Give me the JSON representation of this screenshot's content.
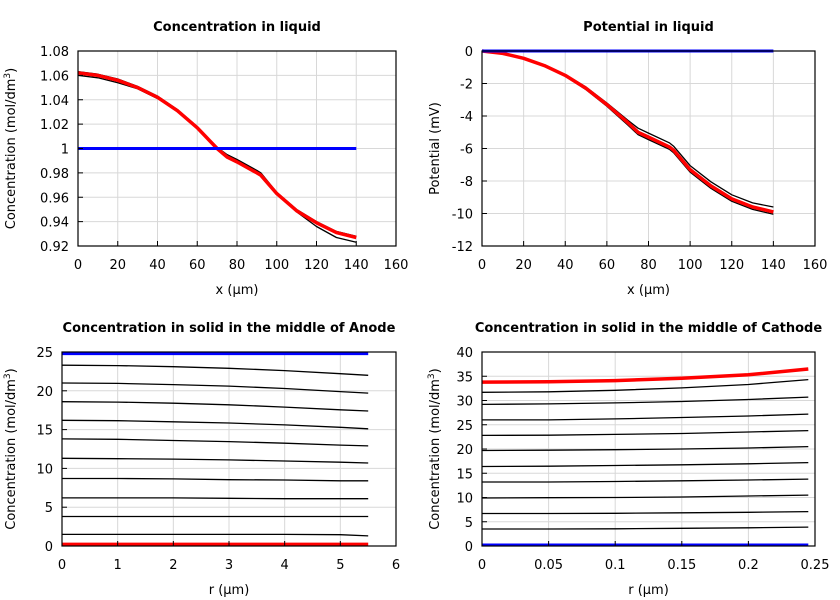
{
  "chart_data": [
    {
      "type": "line",
      "title": "Concentration in liquid",
      "xlabel": "x (µm)",
      "ylabel": "Concentration (mol/dm3)",
      "xlim": [
        0,
        160
      ],
      "ylim": [
        0.92,
        1.08
      ],
      "xticks": [
        0,
        20,
        40,
        60,
        80,
        100,
        120,
        140,
        160
      ],
      "yticks": [
        0.92,
        0.94,
        0.96,
        0.98,
        1,
        1.02,
        1.04,
        1.06,
        1.08
      ],
      "grid": true,
      "x": [
        0,
        10,
        20,
        30,
        40,
        50,
        60,
        70,
        75,
        80,
        90,
        92,
        100,
        110,
        120,
        130,
        140
      ],
      "series": [
        {
          "color": "#000000",
          "values": [
            1.06,
            1.058,
            1.054,
            1.049,
            1.041,
            1.031,
            1.017,
            1.001,
            0.994,
            0.99,
            0.981,
            0.979,
            0.963,
            0.948,
            0.936,
            0.927,
            0.923
          ]
        },
        {
          "color": "#000000",
          "values": [
            1.063,
            1.061,
            1.057,
            1.051,
            1.043,
            1.032,
            1.018,
            1.001,
            0.995,
            0.991,
            0.982,
            0.98,
            0.964,
            0.95,
            0.94,
            0.932,
            0.928
          ]
        },
        {
          "color": "#ff0000",
          "values": [
            1.062,
            1.06,
            1.056,
            1.05,
            1.042,
            1.031,
            1.017,
            1.0,
            0.993,
            0.989,
            0.98,
            0.978,
            0.963,
            0.949,
            0.939,
            0.931,
            0.927
          ]
        },
        {
          "color": "#0000ff",
          "values": [
            1,
            1,
            1,
            1,
            1,
            1,
            1,
            1,
            1,
            1,
            1,
            1,
            1,
            1,
            1,
            1,
            1
          ]
        }
      ]
    },
    {
      "type": "line",
      "title": "Potential in liquid",
      "xlabel": "x (µm)",
      "ylabel": "Potential (mV)",
      "xlim": [
        0,
        160
      ],
      "ylim": [
        -12,
        0
      ],
      "xticks": [
        0,
        20,
        40,
        60,
        80,
        100,
        120,
        140,
        160
      ],
      "yticks": [
        -12,
        -10,
        -8,
        -6,
        -4,
        -2,
        0
      ],
      "grid": true,
      "x": [
        0,
        10,
        20,
        30,
        40,
        50,
        60,
        70,
        75,
        80,
        90,
        92,
        100,
        110,
        120,
        130,
        140
      ],
      "series": [
        {
          "color": "#000000",
          "values": [
            0,
            -0.15,
            -0.43,
            -0.87,
            -1.45,
            -2.22,
            -3.2,
            -4.25,
            -4.75,
            -5.05,
            -5.65,
            -5.85,
            -7.05,
            -8.05,
            -8.85,
            -9.35,
            -9.6
          ]
        },
        {
          "color": "#000000",
          "values": [
            0,
            -0.16,
            -0.47,
            -0.93,
            -1.55,
            -2.38,
            -3.4,
            -4.55,
            -5.15,
            -5.45,
            -6.05,
            -6.25,
            -7.45,
            -8.45,
            -9.25,
            -9.75,
            -10.05
          ]
        },
        {
          "color": "#ff0000",
          "values": [
            0,
            -0.15,
            -0.45,
            -0.9,
            -1.5,
            -2.3,
            -3.3,
            -4.4,
            -5.0,
            -5.3,
            -5.9,
            -6.1,
            -7.3,
            -8.3,
            -9.1,
            -9.6,
            -9.9
          ]
        },
        {
          "color": "#0000ff",
          "values": [
            0,
            0,
            0,
            0,
            0,
            0,
            0,
            0,
            0,
            0,
            0,
            0,
            0,
            0,
            0,
            0,
            0
          ]
        }
      ]
    },
    {
      "type": "line",
      "title": "Concentration in solid in the middle of Anode",
      "xlabel": "r (µm)",
      "ylabel": "Concentration (mol/dm3)",
      "xlim": [
        0,
        6
      ],
      "ylim": [
        0,
        25
      ],
      "xticks": [
        0,
        1,
        2,
        3,
        4,
        5,
        6
      ],
      "yticks": [
        0,
        5,
        10,
        15,
        20,
        25
      ],
      "grid": true,
      "x": [
        0,
        1,
        2,
        3,
        4,
        5,
        5.5
      ],
      "series": [
        {
          "color": "#0000ff",
          "values": [
            24.8,
            24.8,
            24.8,
            24.8,
            24.8,
            24.8,
            24.8
          ]
        },
        {
          "color": "#000000",
          "values": [
            23.3,
            23.25,
            23.1,
            22.9,
            22.6,
            22.2,
            22.0
          ]
        },
        {
          "color": "#000000",
          "values": [
            21.0,
            20.95,
            20.8,
            20.6,
            20.3,
            19.9,
            19.7
          ]
        },
        {
          "color": "#000000",
          "values": [
            18.6,
            18.55,
            18.4,
            18.2,
            17.9,
            17.55,
            17.4
          ]
        },
        {
          "color": "#000000",
          "values": [
            16.2,
            16.15,
            16.0,
            15.85,
            15.6,
            15.3,
            15.1
          ]
        },
        {
          "color": "#000000",
          "values": [
            13.8,
            13.75,
            13.6,
            13.45,
            13.25,
            13.0,
            12.9
          ]
        },
        {
          "color": "#000000",
          "values": [
            11.3,
            11.25,
            11.2,
            11.1,
            10.95,
            10.8,
            10.7
          ]
        },
        {
          "color": "#000000",
          "values": [
            8.7,
            8.7,
            8.65,
            8.55,
            8.5,
            8.4,
            8.4
          ]
        },
        {
          "color": "#000000",
          "values": [
            6.2,
            6.2,
            6.2,
            6.15,
            6.1,
            6.1,
            6.1
          ]
        },
        {
          "color": "#000000",
          "values": [
            3.8,
            3.8,
            3.8,
            3.8,
            3.8,
            3.8,
            3.8
          ]
        },
        {
          "color": "#000000",
          "values": [
            1.5,
            1.5,
            1.5,
            1.5,
            1.5,
            1.45,
            1.3
          ]
        },
        {
          "color": "#ff0000",
          "values": [
            0.2,
            0.2,
            0.2,
            0.2,
            0.2,
            0.2,
            0.2
          ]
        }
      ]
    },
    {
      "type": "line",
      "title": "Concentration in solid in the middle of Cathode",
      "xlabel": "r (µm)",
      "ylabel": "Concentration (mol/dm3)",
      "xlim": [
        0,
        0.25
      ],
      "ylim": [
        0,
        40
      ],
      "xticks": [
        0,
        0.05,
        0.1,
        0.15,
        0.2,
        0.25
      ],
      "yticks": [
        0,
        5,
        10,
        15,
        20,
        25,
        30,
        35,
        40
      ],
      "grid": true,
      "x": [
        0,
        0.05,
        0.1,
        0.15,
        0.2,
        0.245
      ],
      "series": [
        {
          "color": "#ff0000",
          "values": [
            33.8,
            33.85,
            34.1,
            34.6,
            35.3,
            36.5
          ]
        },
        {
          "color": "#000000",
          "values": [
            31.7,
            31.8,
            32.1,
            32.6,
            33.3,
            34.3
          ]
        },
        {
          "color": "#000000",
          "values": [
            29.2,
            29.3,
            29.5,
            29.8,
            30.2,
            30.7
          ]
        },
        {
          "color": "#000000",
          "values": [
            26.0,
            26.0,
            26.2,
            26.5,
            26.8,
            27.2
          ]
        },
        {
          "color": "#000000",
          "values": [
            22.8,
            22.85,
            23.0,
            23.2,
            23.5,
            23.8
          ]
        },
        {
          "color": "#000000",
          "values": [
            19.7,
            19.75,
            19.85,
            20.0,
            20.2,
            20.5
          ]
        },
        {
          "color": "#000000",
          "values": [
            16.4,
            16.45,
            16.6,
            16.75,
            16.95,
            17.2
          ]
        },
        {
          "color": "#000000",
          "values": [
            13.2,
            13.2,
            13.3,
            13.45,
            13.6,
            13.8
          ]
        },
        {
          "color": "#000000",
          "values": [
            9.9,
            9.95,
            10.0,
            10.1,
            10.3,
            10.5
          ]
        },
        {
          "color": "#000000",
          "values": [
            6.7,
            6.7,
            6.75,
            6.85,
            6.95,
            7.1
          ]
        },
        {
          "color": "#000000",
          "values": [
            3.5,
            3.5,
            3.55,
            3.65,
            3.75,
            3.9
          ]
        },
        {
          "color": "#0000ff",
          "values": [
            0.2,
            0.2,
            0.2,
            0.2,
            0.2,
            0.2
          ]
        }
      ]
    }
  ]
}
